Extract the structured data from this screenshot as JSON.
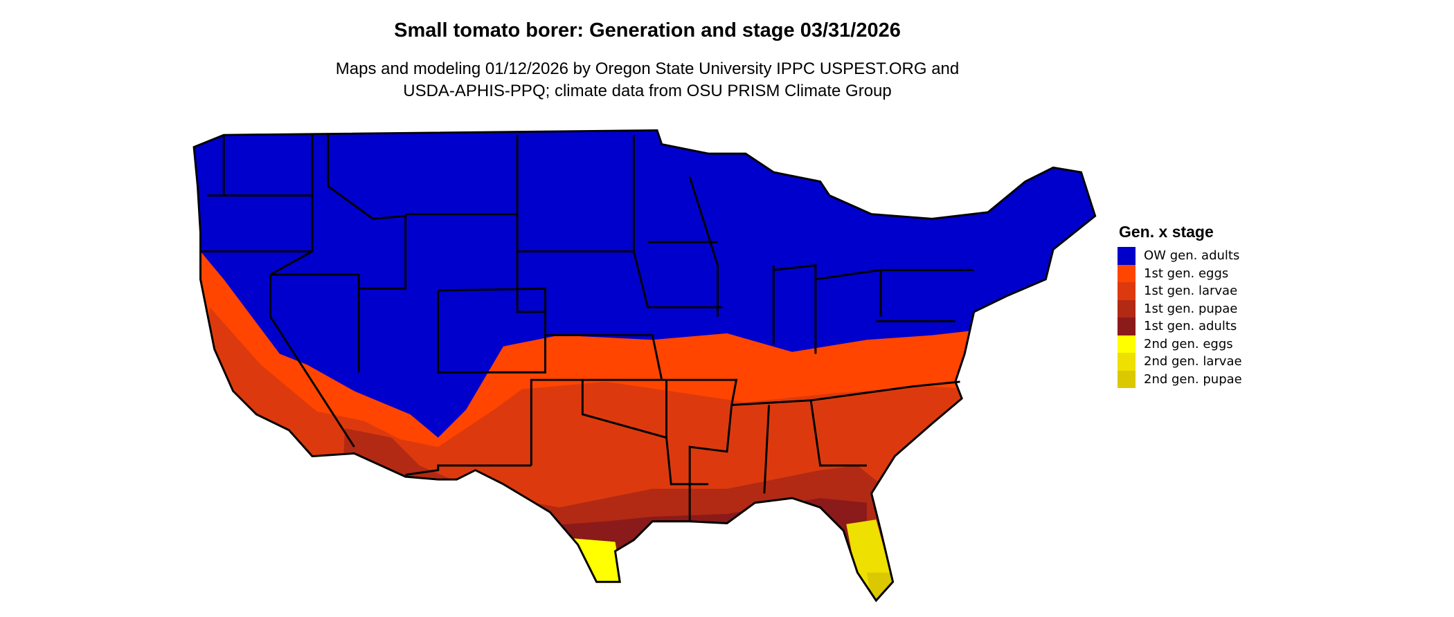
{
  "title": "Small tomato borer: Generation and stage 03/31/2026",
  "subtitle_line1": "Maps and modeling 01/12/2026 by Oregon State University IPPC USPEST.ORG and",
  "subtitle_line2": "USDA-APHIS-PPQ; climate data from OSU PRISM Climate Group",
  "legend": {
    "title": "Gen. x stage",
    "items": [
      {
        "label": "OW gen. adults",
        "color": "#0000CC"
      },
      {
        "label": "1st gen. eggs",
        "color": "#FF4500"
      },
      {
        "label": "1st gen. larvae",
        "color": "#DC3A0E"
      },
      {
        "label": "1st gen. pupae",
        "color": "#B22A14"
      },
      {
        "label": "1st gen. adults",
        "color": "#8B1A1A"
      },
      {
        "label": "2nd gen. eggs",
        "color": "#FFFF00"
      },
      {
        "label": "2nd gen. larvae",
        "color": "#EEE000"
      },
      {
        "label": "2nd gen. pupae",
        "color": "#DCC800"
      }
    ]
  }
}
